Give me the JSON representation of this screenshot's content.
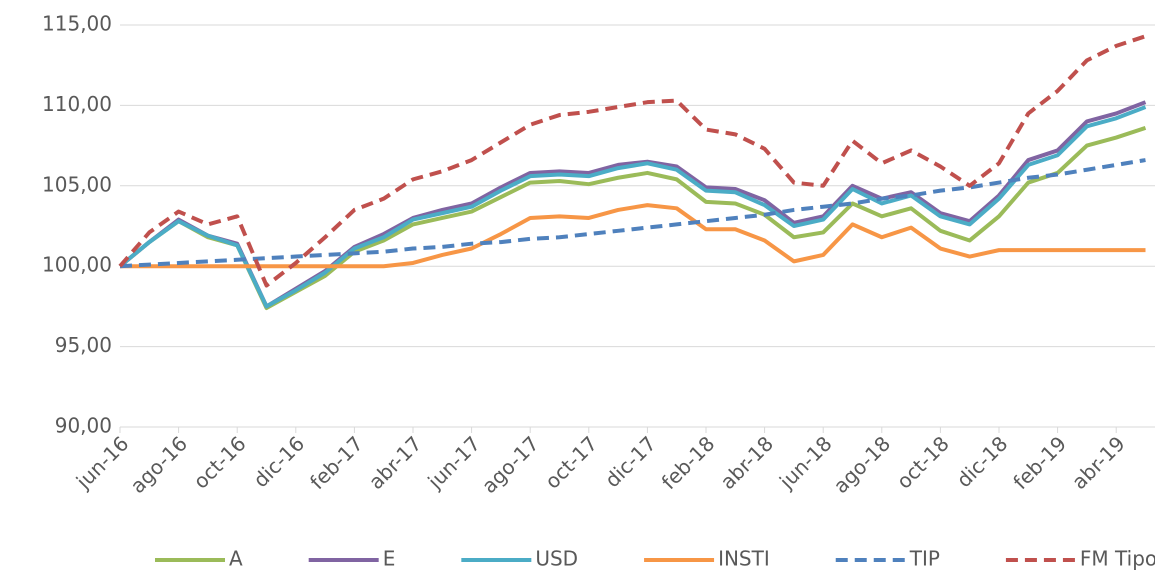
{
  "chart_data": {
    "type": "line",
    "categories": [
      "jun-16",
      null,
      "ago-16",
      null,
      "oct-16",
      null,
      "dic-16",
      null,
      "feb-17",
      null,
      "abr-17",
      null,
      "jun-17",
      null,
      "ago-17",
      null,
      "oct-17",
      null,
      "dic-17",
      null,
      "feb-18",
      null,
      "abr-18",
      null,
      "jun-18",
      null,
      "ago-18",
      null,
      "oct-18",
      null,
      "dic-18",
      null,
      "feb-19",
      null,
      "abr-19",
      null
    ],
    "series": [
      {
        "name": "A",
        "color": "#9bbb59",
        "dash": false,
        "values": [
          100,
          101.5,
          102.8,
          101.8,
          101.3,
          97.4,
          98.4,
          99.4,
          100.9,
          101.6,
          102.6,
          103.0,
          103.4,
          104.3,
          105.2,
          105.3,
          105.1,
          105.5,
          105.8,
          105.4,
          104.0,
          103.9,
          103.2,
          101.8,
          102.1,
          103.9,
          103.1,
          103.6,
          102.2,
          101.6,
          103.1,
          105.2,
          105.8,
          107.5,
          108.0,
          108.6
        ]
      },
      {
        "name": "E",
        "color": "#8064a2",
        "dash": false,
        "values": [
          100,
          101.5,
          102.9,
          101.9,
          101.4,
          97.5,
          98.6,
          99.7,
          101.2,
          102.0,
          103.0,
          103.5,
          103.9,
          104.9,
          105.8,
          105.9,
          105.8,
          106.3,
          106.5,
          106.2,
          104.9,
          104.8,
          104.1,
          102.7,
          103.1,
          105.0,
          104.2,
          104.6,
          103.3,
          102.8,
          104.4,
          106.6,
          107.2,
          109.0,
          109.5,
          110.2
        ]
      },
      {
        "name": "USD",
        "color": "#4bacc6",
        "dash": false,
        "values": [
          100,
          101.5,
          102.8,
          101.9,
          101.3,
          97.5,
          98.5,
          99.6,
          101.1,
          101.8,
          102.9,
          103.3,
          103.7,
          104.7,
          105.6,
          105.7,
          105.6,
          106.1,
          106.4,
          106.0,
          104.7,
          104.6,
          103.8,
          102.5,
          102.9,
          104.8,
          103.9,
          104.4,
          103.1,
          102.6,
          104.2,
          106.3,
          106.9,
          108.7,
          109.2,
          109.9
        ]
      },
      {
        "name": "INSTI",
        "color": "#f79646",
        "dash": false,
        "values": [
          100,
          100,
          100,
          100,
          100,
          100,
          100,
          100,
          100,
          100,
          100.2,
          100.7,
          101.1,
          102.0,
          103.0,
          103.1,
          103.0,
          103.5,
          103.8,
          103.6,
          102.3,
          102.3,
          101.6,
          100.3,
          100.7,
          102.6,
          101.8,
          102.4,
          101.1,
          100.6,
          101.0,
          101.0,
          101.0,
          101.0,
          101.0,
          101.0
        ]
      },
      {
        "name": "TIP",
        "color": "#4f81bd",
        "dash": true,
        "values": [
          100,
          100.1,
          100.2,
          100.3,
          100.4,
          100.5,
          100.6,
          100.7,
          100.8,
          100.9,
          101.1,
          101.2,
          101.4,
          101.5,
          101.7,
          101.8,
          102.0,
          102.2,
          102.4,
          102.6,
          102.8,
          103.0,
          103.2,
          103.5,
          103.7,
          103.9,
          104.2,
          104.4,
          104.7,
          104.9,
          105.2,
          105.5,
          105.7,
          106.0,
          106.3,
          106.6
        ]
      },
      {
        "name": "FM Tipo",
        "color": "#c0504d",
        "dash": true,
        "values": [
          100,
          102.1,
          103.4,
          102.6,
          103.1,
          98.8,
          100.2,
          101.8,
          103.5,
          104.2,
          105.4,
          105.9,
          106.6,
          107.7,
          108.8,
          109.4,
          109.6,
          109.9,
          110.2,
          110.3,
          108.5,
          108.2,
          107.3,
          105.2,
          105.0,
          107.8,
          106.4,
          107.2,
          106.2,
          105.0,
          106.4,
          109.5,
          110.9,
          112.8,
          113.7,
          114.3
        ]
      }
    ],
    "ylim": [
      90,
      115
    ],
    "yticks": [
      {
        "value": 90,
        "label": "90,00"
      },
      {
        "value": 95,
        "label": "95,00"
      },
      {
        "value": 100,
        "label": "100,00"
      },
      {
        "value": 105,
        "label": "105,00"
      },
      {
        "value": 110,
        "label": "110,00"
      },
      {
        "value": 115,
        "label": "115,00"
      }
    ],
    "grid": true,
    "legend": "bottom"
  }
}
